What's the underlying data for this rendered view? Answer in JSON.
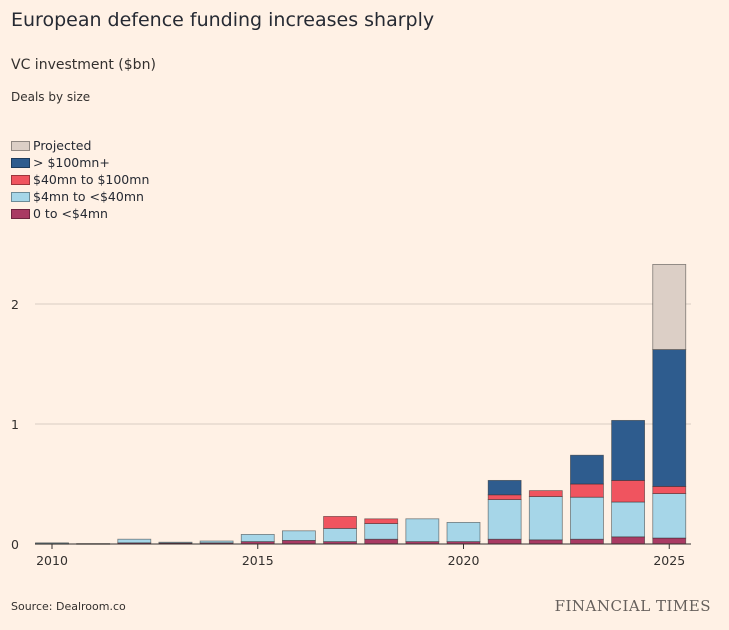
{
  "title": "European defence funding increases sharply",
  "subtitle": "VC investment ($bn)",
  "subhead": "Deals by size",
  "source": "Source: Dealroom.co",
  "logo_text": "FINANCIAL TIMES",
  "colors": {
    "background": "#fff1e5",
    "gridline": "#d9cdc3",
    "projected": "#dccfc6",
    "over100": "#2e5c8e",
    "mid40to100": "#f0545f",
    "small4to40": "#a6d6e8",
    "under4": "#a93a63"
  },
  "legend": [
    {
      "key": "projected",
      "label": "Projected",
      "color": "#dccfc6"
    },
    {
      "key": "over100",
      "label": "> $100mn+",
      "color": "#2e5c8e"
    },
    {
      "key": "mid40to100",
      "label": "$40mn to $100mn",
      "color": "#f0545f"
    },
    {
      "key": "small4to40",
      "label": "$4mn to <$40mn",
      "color": "#a6d6e8"
    },
    {
      "key": "under4",
      "label": "0 to <$4mn",
      "color": "#a93a63"
    }
  ],
  "chart_data": {
    "type": "bar",
    "stacked": true,
    "title": "European defence funding increases sharply",
    "ylabel": "VC investment ($bn)",
    "ylim": [
      0,
      2.4
    ],
    "yticks": [
      0,
      1,
      2
    ],
    "xticks": [
      2010,
      2015,
      2020,
      2025
    ],
    "grid": true,
    "legend_position": "top-left",
    "categories": [
      2010,
      2011,
      2012,
      2013,
      2014,
      2015,
      2016,
      2017,
      2018,
      2019,
      2020,
      2021,
      2022,
      2023,
      2024,
      2025
    ],
    "series": [
      {
        "name": "0 to <$4mn",
        "key": "under4",
        "values": [
          0.005,
          0.004,
          0.01,
          0.01,
          0.01,
          0.02,
          0.03,
          0.02,
          0.04,
          0.02,
          0.02,
          0.04,
          0.035,
          0.04,
          0.06,
          0.05
        ]
      },
      {
        "name": "$4mn to <$40mn",
        "key": "small4to40",
        "values": [
          0.005,
          0.0,
          0.03,
          0.005,
          0.015,
          0.06,
          0.08,
          0.11,
          0.13,
          0.19,
          0.16,
          0.33,
          0.36,
          0.35,
          0.29,
          0.37
        ]
      },
      {
        "name": "$40mn to $100mn",
        "key": "mid40to100",
        "values": [
          0,
          0,
          0,
          0,
          0,
          0,
          0,
          0.1,
          0.04,
          0,
          0,
          0.04,
          0.05,
          0.11,
          0.18,
          0.06
        ]
      },
      {
        "name": "> $100mn+",
        "key": "over100",
        "values": [
          0,
          0,
          0,
          0,
          0,
          0,
          0,
          0,
          0,
          0,
          0,
          0.12,
          0,
          0.24,
          0.5,
          1.14
        ]
      },
      {
        "name": "Projected",
        "key": "projected",
        "values": [
          0,
          0,
          0,
          0,
          0,
          0,
          0,
          0,
          0,
          0,
          0,
          0,
          0,
          0,
          0,
          0.71
        ]
      }
    ]
  }
}
